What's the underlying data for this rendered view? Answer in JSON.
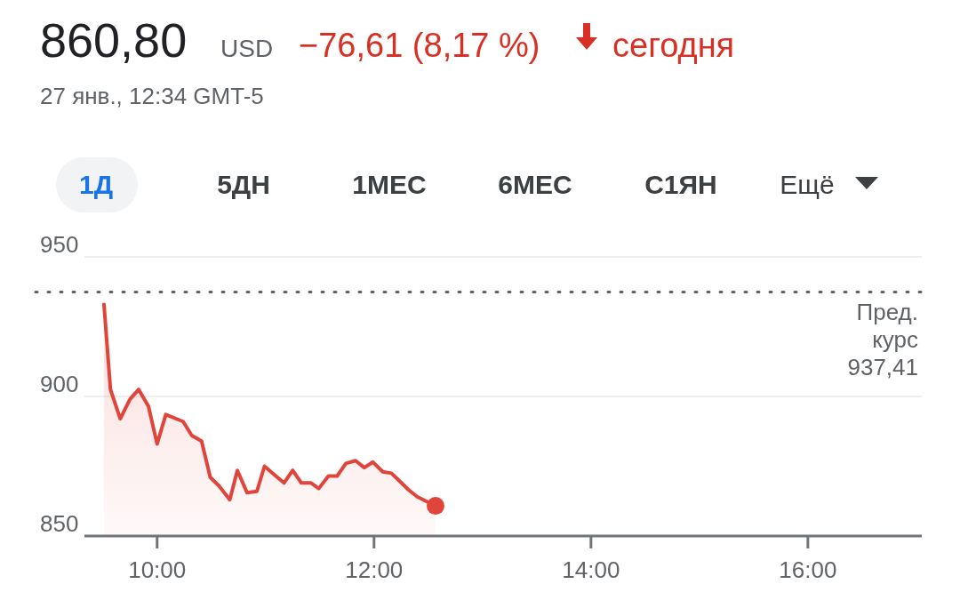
{
  "chart_data": {
    "type": "area",
    "title": "860,80",
    "subtitle": "27 янв., 12:34 GMT-5",
    "annotations": [
      "USD",
      "−76,61 (8,17 %)",
      "сегодня",
      "1Д",
      "5ДН",
      "1МЕС",
      "6МЕС",
      "С1ЯН",
      "Ещё"
    ],
    "series": [
      {
        "color": "#e0443a",
        "x": [
          9.51,
          9.57,
          9.66,
          9.75,
          9.83,
          9.92,
          10.0,
          10.08,
          10.24,
          10.32,
          10.41,
          10.49,
          10.57,
          10.67,
          10.74,
          10.83,
          10.92,
          10.99,
          11.08,
          11.17,
          11.25,
          11.33,
          11.42,
          11.49,
          11.58,
          11.66,
          11.74,
          11.83,
          11.91,
          11.99,
          12.08,
          12.16,
          12.24,
          12.32,
          12.4,
          12.567
        ],
        "values": [
          933,
          902.5,
          892,
          899,
          902.5,
          896.5,
          883,
          893.5,
          891,
          886,
          884,
          871,
          868,
          863,
          873.5,
          865.5,
          866,
          875,
          872,
          869,
          873.5,
          869,
          869,
          867,
          871.5,
          871.5,
          876,
          877,
          874.5,
          876.5,
          873,
          872.5,
          869.5,
          866.5,
          864,
          860.8
        ]
      }
    ],
    "xlim": [
      9.33,
      17.05
    ],
    "xticks": [
      {
        "value": 10,
        "label": "10:00"
      },
      {
        "value": 12,
        "label": "12:00"
      },
      {
        "value": 14,
        "label": "14:00"
      },
      {
        "value": 16,
        "label": "16:00"
      }
    ],
    "ylim": [
      850,
      950
    ],
    "yticks": [
      850,
      900,
      950
    ],
    "grid": "y",
    "ref_lines": [
      {
        "axis": "y",
        "value": 937.41,
        "label": "Пред.\nкурс\n937,41",
        "color": "#5f6368",
        "line_style": "dotted"
      }
    ]
  }
}
